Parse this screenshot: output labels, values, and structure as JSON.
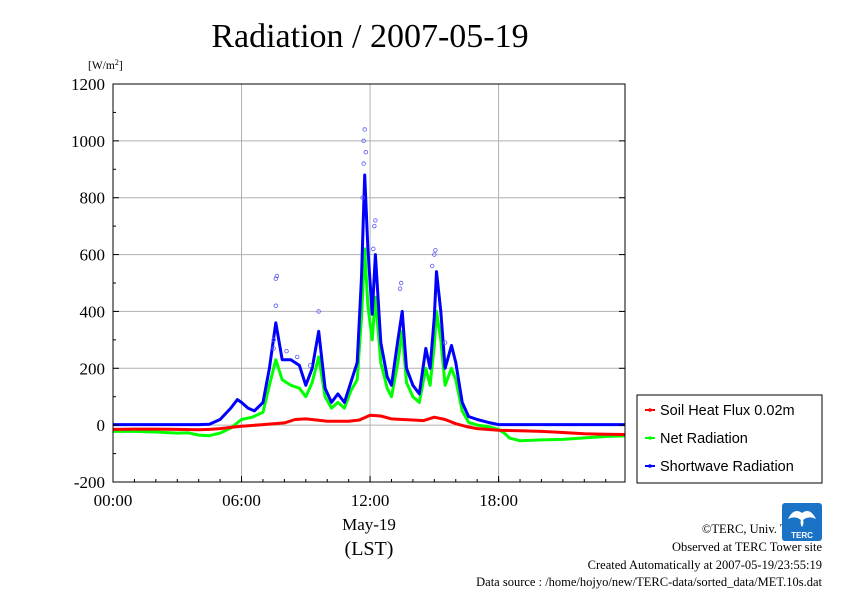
{
  "chart_data": {
    "type": "line",
    "title": "Radiation / 2007-05-19",
    "unit": "[W/m",
    "unit_sup": "2",
    "unit_close": "]",
    "ylim": [
      -200,
      1200
    ],
    "xlim": [
      0,
      23.9
    ],
    "grid": true,
    "legend_position": "bottom-right-outside",
    "xticks": [
      {
        "x": 0,
        "label": "00:00"
      },
      {
        "x": 6,
        "label": "06:00"
      },
      {
        "x": 12,
        "label": "12:00"
      },
      {
        "x": 18,
        "label": "18:00"
      }
    ],
    "yticks": [
      -200,
      0,
      200,
      400,
      600,
      800,
      1000,
      1200
    ],
    "xlabel_date": "May-19",
    "xlabel_tz": "(LST)",
    "series": [
      {
        "name": "Soil Heat Flux 0.02m",
        "color": "#ff0000",
        "points": [
          [
            0,
            -15
          ],
          [
            1,
            -14
          ],
          [
            2,
            -14
          ],
          [
            3,
            -15
          ],
          [
            4,
            -16
          ],
          [
            4.5,
            -15
          ],
          [
            5,
            -12
          ],
          [
            5.5,
            -8
          ],
          [
            6,
            -4
          ],
          [
            7,
            2
          ],
          [
            8,
            8
          ],
          [
            8.5,
            20
          ],
          [
            9,
            22
          ],
          [
            9.5,
            18
          ],
          [
            10,
            14
          ],
          [
            11,
            14
          ],
          [
            11.5,
            18
          ],
          [
            12,
            35
          ],
          [
            12.5,
            32
          ],
          [
            13,
            22
          ],
          [
            13.5,
            20
          ],
          [
            14,
            18
          ],
          [
            14.5,
            16
          ],
          [
            15,
            28
          ],
          [
            15.5,
            20
          ],
          [
            16,
            5
          ],
          [
            16.5,
            -5
          ],
          [
            17,
            -12
          ],
          [
            18,
            -18
          ],
          [
            19,
            -20
          ],
          [
            20,
            -22
          ],
          [
            21,
            -26
          ],
          [
            22,
            -30
          ],
          [
            23,
            -32
          ],
          [
            23.9,
            -33
          ]
        ]
      },
      {
        "name": "Net Radiation",
        "color": "#00ff00",
        "points": [
          [
            0,
            -22
          ],
          [
            1,
            -22
          ],
          [
            2,
            -24
          ],
          [
            3,
            -28
          ],
          [
            3.5,
            -27
          ],
          [
            4,
            -35
          ],
          [
            4.5,
            -37
          ],
          [
            5,
            -28
          ],
          [
            5.5,
            -10
          ],
          [
            6,
            20
          ],
          [
            6.5,
            28
          ],
          [
            7,
            45
          ],
          [
            7.3,
            140
          ],
          [
            7.6,
            230
          ],
          [
            7.9,
            160
          ],
          [
            8.3,
            140
          ],
          [
            8.7,
            130
          ],
          [
            9,
            100
          ],
          [
            9.3,
            150
          ],
          [
            9.6,
            240
          ],
          [
            9.9,
            100
          ],
          [
            10.2,
            60
          ],
          [
            10.5,
            80
          ],
          [
            10.8,
            60
          ],
          [
            11.1,
            120
          ],
          [
            11.4,
            160
          ],
          [
            11.6,
            380
          ],
          [
            11.75,
            620
          ],
          [
            11.9,
            420
          ],
          [
            12.1,
            300
          ],
          [
            12.25,
            450
          ],
          [
            12.5,
            220
          ],
          [
            12.8,
            130
          ],
          [
            13,
            100
          ],
          [
            13.3,
            220
          ],
          [
            13.5,
            330
          ],
          [
            13.7,
            150
          ],
          [
            14,
            100
          ],
          [
            14.3,
            80
          ],
          [
            14.6,
            200
          ],
          [
            14.8,
            140
          ],
          [
            15,
            280
          ],
          [
            15.1,
            400
          ],
          [
            15.3,
            300
          ],
          [
            15.5,
            140
          ],
          [
            15.8,
            200
          ],
          [
            16,
            160
          ],
          [
            16.3,
            50
          ],
          [
            16.6,
            10
          ],
          [
            17,
            0
          ],
          [
            17.5,
            -5
          ],
          [
            18,
            -15
          ],
          [
            18.3,
            -30
          ],
          [
            18.5,
            -45
          ],
          [
            19,
            -55
          ],
          [
            20,
            -52
          ],
          [
            21,
            -50
          ],
          [
            22,
            -45
          ],
          [
            23,
            -40
          ],
          [
            23.9,
            -38
          ]
        ]
      },
      {
        "name": "Shortwave Radiation",
        "color": "#0000ff",
        "points": [
          [
            0,
            2
          ],
          [
            1,
            2
          ],
          [
            2,
            2
          ],
          [
            3,
            2
          ],
          [
            4,
            2
          ],
          [
            4.5,
            3
          ],
          [
            5,
            20
          ],
          [
            5.5,
            60
          ],
          [
            5.8,
            90
          ],
          [
            6,
            80
          ],
          [
            6.3,
            60
          ],
          [
            6.6,
            50
          ],
          [
            7,
            80
          ],
          [
            7.3,
            200
          ],
          [
            7.6,
            360
          ],
          [
            7.9,
            230
          ],
          [
            8.3,
            230
          ],
          [
            8.7,
            210
          ],
          [
            9,
            140
          ],
          [
            9.3,
            200
          ],
          [
            9.6,
            330
          ],
          [
            9.9,
            130
          ],
          [
            10.2,
            80
          ],
          [
            10.5,
            110
          ],
          [
            10.8,
            80
          ],
          [
            11.1,
            150
          ],
          [
            11.4,
            220
          ],
          [
            11.6,
            520
          ],
          [
            11.75,
            880
          ],
          [
            11.9,
            620
          ],
          [
            12.1,
            390
          ],
          [
            12.25,
            600
          ],
          [
            12.5,
            290
          ],
          [
            12.8,
            170
          ],
          [
            13,
            140
          ],
          [
            13.3,
            300
          ],
          [
            13.5,
            400
          ],
          [
            13.7,
            200
          ],
          [
            14,
            140
          ],
          [
            14.3,
            110
          ],
          [
            14.6,
            270
          ],
          [
            14.8,
            200
          ],
          [
            15,
            380
          ],
          [
            15.1,
            540
          ],
          [
            15.3,
            400
          ],
          [
            15.5,
            200
          ],
          [
            15.8,
            280
          ],
          [
            16,
            220
          ],
          [
            16.3,
            80
          ],
          [
            16.6,
            30
          ],
          [
            17,
            20
          ],
          [
            17.5,
            10
          ],
          [
            18,
            2
          ],
          [
            19,
            2
          ],
          [
            20,
            2
          ],
          [
            21,
            2
          ],
          [
            22,
            2
          ],
          [
            23,
            2
          ],
          [
            23.9,
            2
          ]
        ]
      }
    ],
    "scatter_points": [
      [
        7.5,
        270
      ],
      [
        7.5,
        300
      ],
      [
        7.6,
        420
      ],
      [
        7.6,
        515
      ],
      [
        7.65,
        525
      ],
      [
        8.1,
        260
      ],
      [
        8.6,
        240
      ],
      [
        9.2,
        210
      ],
      [
        9.6,
        400
      ],
      [
        11.65,
        800
      ],
      [
        11.7,
        920
      ],
      [
        11.7,
        1000
      ],
      [
        11.75,
        1040
      ],
      [
        11.8,
        960
      ],
      [
        12.15,
        620
      ],
      [
        12.2,
        700
      ],
      [
        12.25,
        720
      ],
      [
        13.4,
        480
      ],
      [
        13.45,
        500
      ],
      [
        14.9,
        560
      ],
      [
        15.0,
        600
      ],
      [
        15.05,
        615
      ],
      [
        15.5,
        290
      ]
    ]
  },
  "credits": {
    "copyright": "©TERC, Univ. Tsukuba",
    "observed": "Observed at TERC Tower site",
    "created": "Created Automatically at 2007-05-19/23:55:19",
    "source": "Data source : /home/hojyo/new/TERC-data/sorted_data/MET.10s.dat"
  },
  "logo": {
    "text": "TERC",
    "color": "#1a73c7"
  }
}
